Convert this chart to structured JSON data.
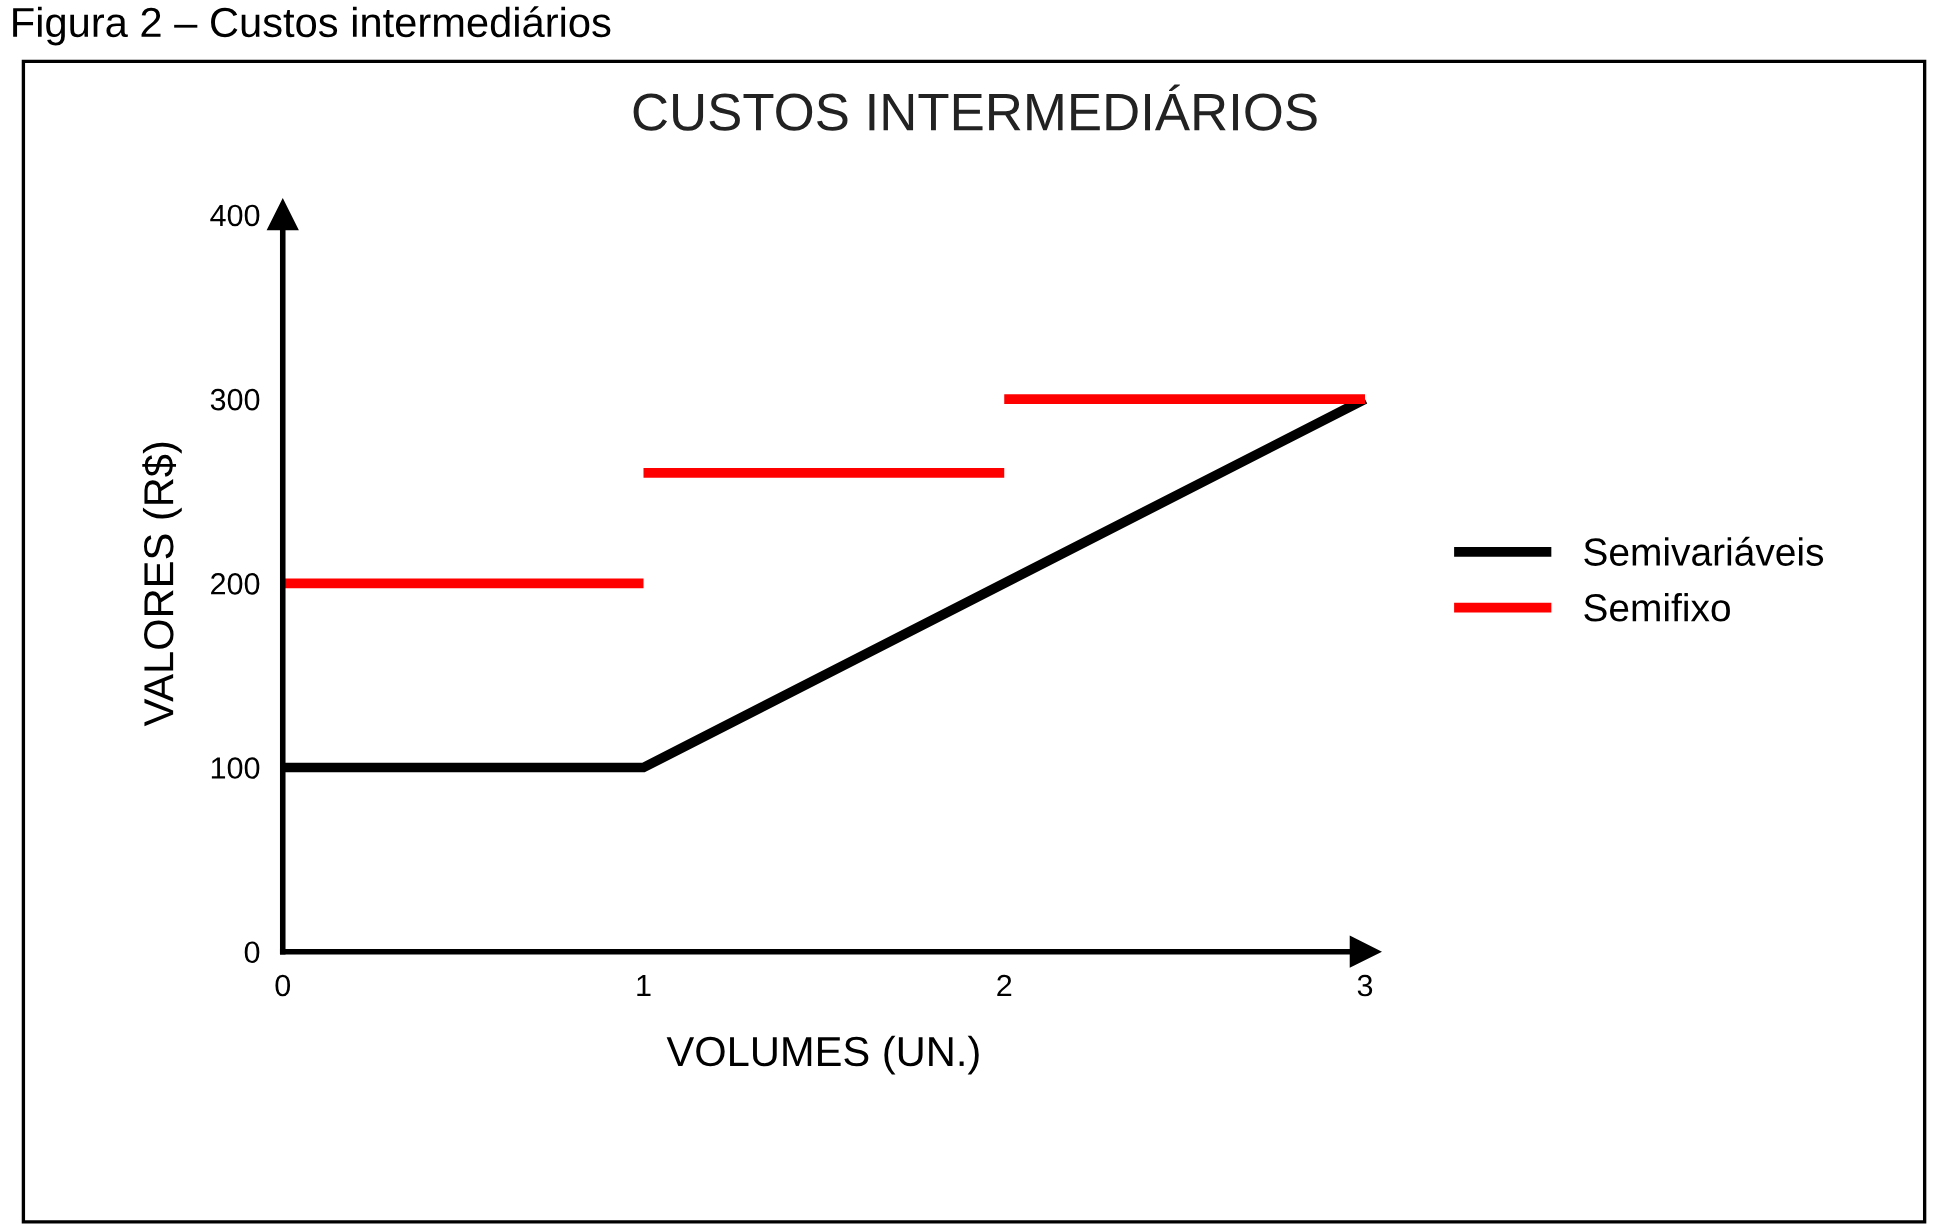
{
  "chart_data": {
    "type": "line",
    "title": "CUSTOS INTERMEDIÁRIOS",
    "xlabel": "VOLUMES (UN.)",
    "ylabel": "VALORES (R$)",
    "annotations": [
      "Figura 2 – Custos intermediários"
    ],
    "series": [
      {
        "name": "Semivariáveis",
        "color": "#000000",
        "x": [
          0,
          1,
          3
        ],
        "values": [
          100,
          100,
          300
        ]
      },
      {
        "name": "Semifixo",
        "color": "#ff0000",
        "x": [
          0,
          1
        ],
        "values": [
          200,
          200
        ]
      },
      {
        "color": "#ff0000",
        "x": [
          1,
          2
        ],
        "values": [
          260,
          260
        ]
      },
      {
        "color": "#ff0000",
        "x": [
          2,
          3
        ],
        "values": [
          300,
          300
        ]
      }
    ],
    "xlim": [
      0,
      3
    ],
    "xticks": [
      0,
      1,
      2,
      3
    ],
    "ylim": [
      0,
      400
    ],
    "yticks": [
      0,
      100,
      200,
      300,
      400
    ],
    "grid": false,
    "legend": "right",
    "marker": "none",
    "line_style": "solid"
  }
}
